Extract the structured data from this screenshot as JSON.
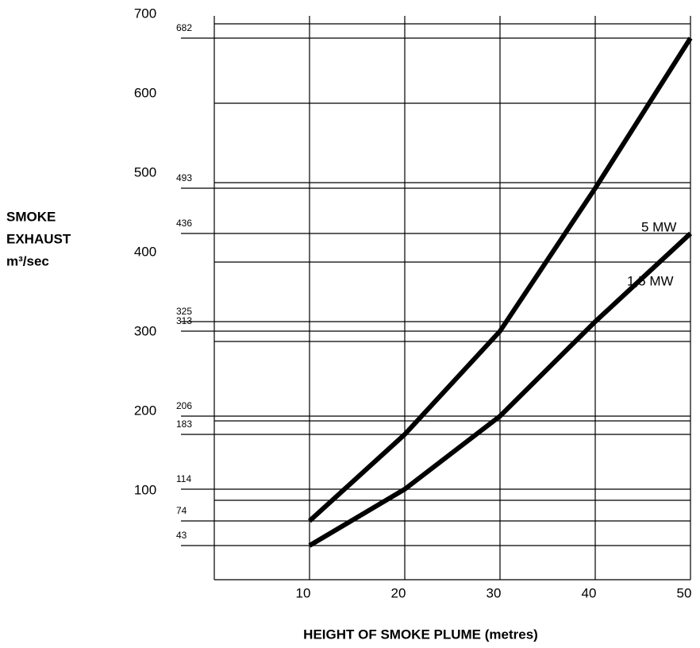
{
  "chart_data": {
    "type": "line",
    "xlabel": "HEIGHT OF SMOKE PLUME (metres)",
    "ylabel": [
      "SMOKE",
      "EXHAUST",
      "m³/sec"
    ],
    "x": [
      10,
      20,
      30,
      40,
      50
    ],
    "series": [
      {
        "name": "5 MW",
        "color": "#000000",
        "values": [
          74,
          183,
          313,
          493,
          682
        ]
      },
      {
        "name": "1,5 MW",
        "color": "#000000",
        "values": [
          43,
          114,
          206,
          325,
          436
        ]
      }
    ],
    "reference_values": [
      682,
      493,
      436,
      325,
      313,
      206,
      183,
      114,
      74,
      43
    ],
    "xlim": [
      0,
      50
    ],
    "xticks": [
      10,
      20,
      30,
      40,
      50
    ],
    "ylim": [
      0,
      700
    ],
    "yticks": [
      100,
      200,
      300,
      400,
      500,
      600,
      700
    ],
    "grid": true
  }
}
